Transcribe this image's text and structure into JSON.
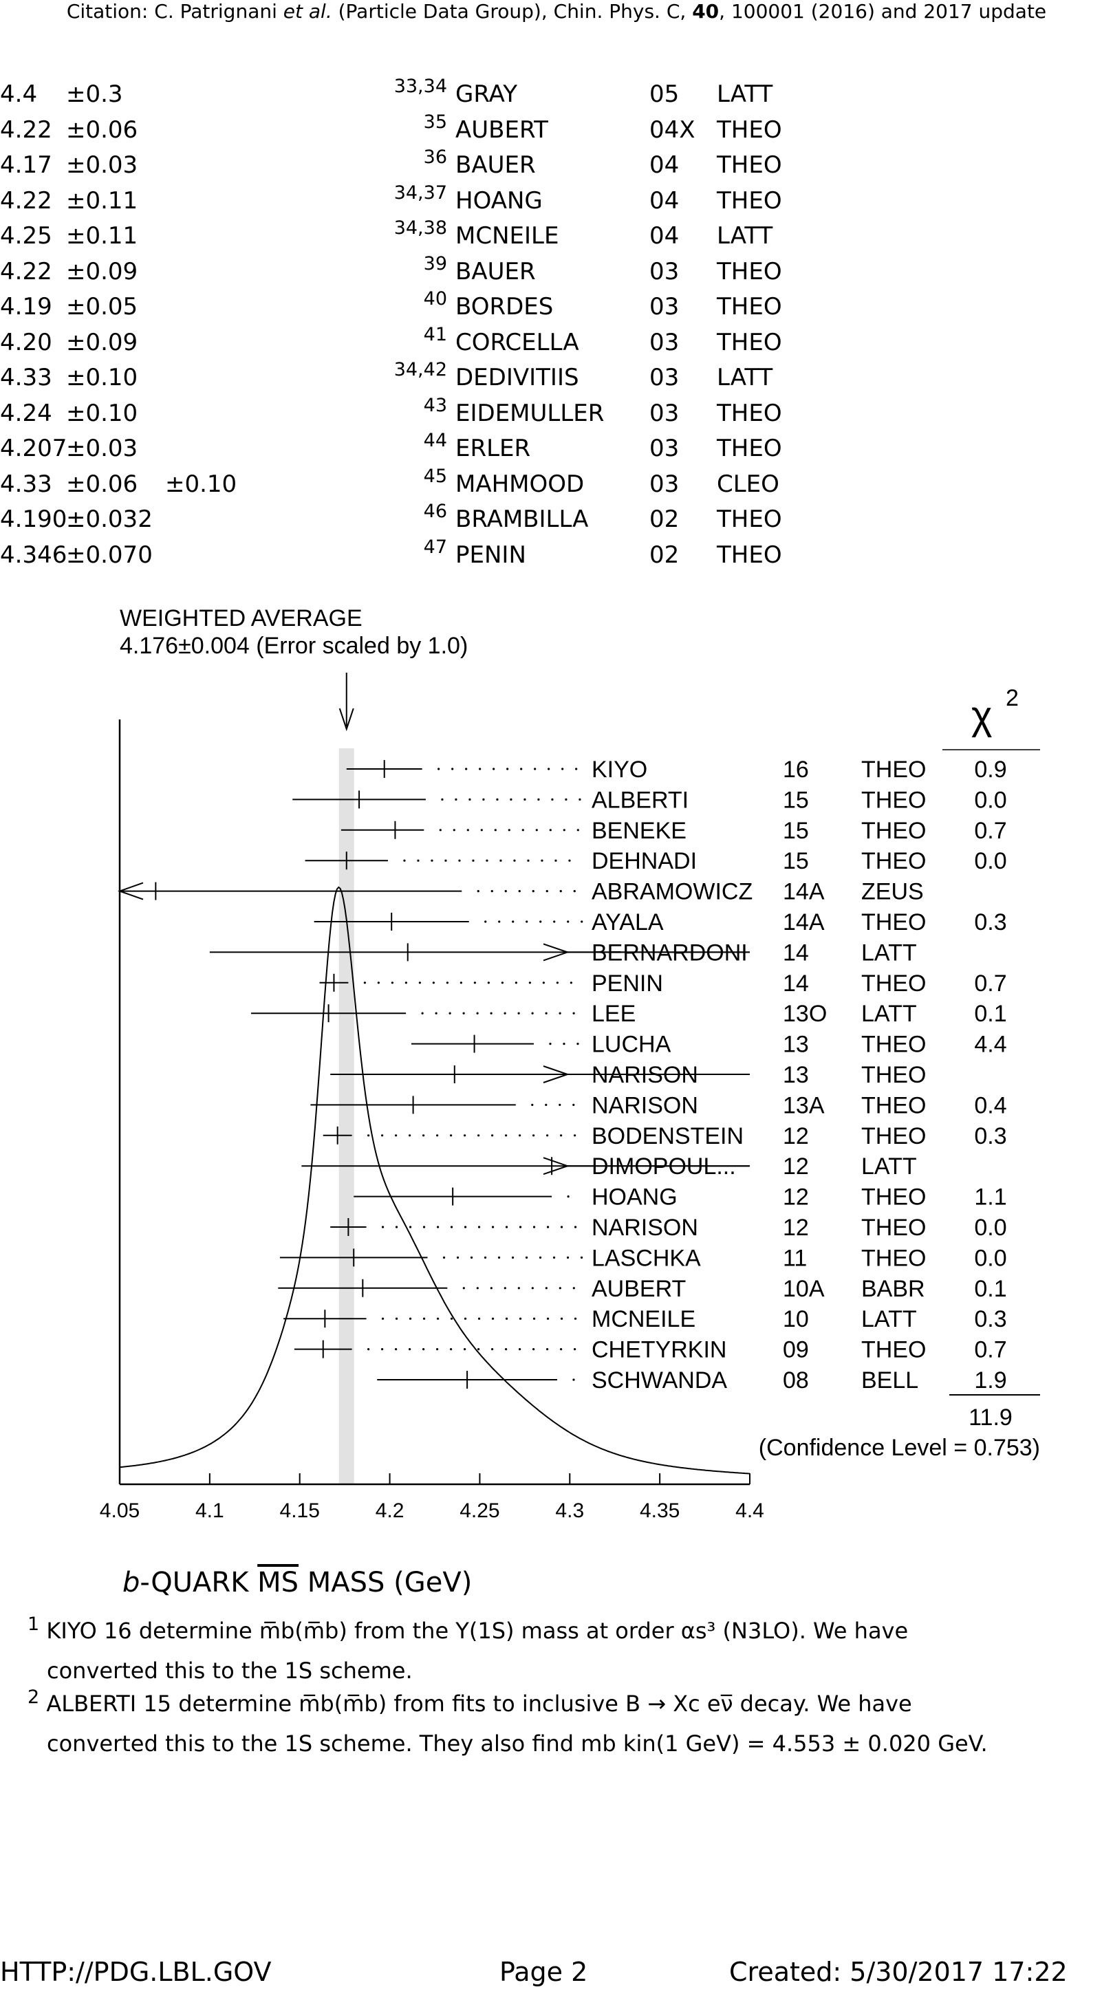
{
  "header": {
    "pre": "Citation: C. Patrignani ",
    "etal": "et al.",
    "post": " (Particle Data Group), Chin. Phys. C, ",
    "vol": "40",
    "tail": ", 100001 (2016) and 2017 update"
  },
  "measurements": [
    {
      "value": "4.4",
      "err1": "±0.3",
      "err2": "",
      "refs": "33,34",
      "author": "GRAY",
      "year": "05",
      "tecn": "LATT"
    },
    {
      "value": "4.22",
      "err1": "±0.06",
      "err2": "",
      "refs": "35",
      "author": "AUBERT",
      "year": "04X",
      "tecn": "THEO"
    },
    {
      "value": "4.17",
      "err1": "±0.03",
      "err2": "",
      "refs": "36",
      "author": "BAUER",
      "year": "04",
      "tecn": "THEO"
    },
    {
      "value": "4.22",
      "err1": "±0.11",
      "err2": "",
      "refs": "34,37",
      "author": "HOANG",
      "year": "04",
      "tecn": "THEO"
    },
    {
      "value": "4.25",
      "err1": "±0.11",
      "err2": "",
      "refs": "34,38",
      "author": "MCNEILE",
      "year": "04",
      "tecn": "LATT"
    },
    {
      "value": "4.22",
      "err1": "±0.09",
      "err2": "",
      "refs": "39",
      "author": "BAUER",
      "year": "03",
      "tecn": "THEO"
    },
    {
      "value": "4.19",
      "err1": "±0.05",
      "err2": "",
      "refs": "40",
      "author": "BORDES",
      "year": "03",
      "tecn": "THEO"
    },
    {
      "value": "4.20",
      "err1": "±0.09",
      "err2": "",
      "refs": "41",
      "author": "CORCELLA",
      "year": "03",
      "tecn": "THEO"
    },
    {
      "value": "4.33",
      "err1": "±0.10",
      "err2": "",
      "refs": "34,42",
      "author": "DEDIVITIIS",
      "year": "03",
      "tecn": "LATT"
    },
    {
      "value": "4.24",
      "err1": "±0.10",
      "err2": "",
      "refs": "43",
      "author": "EIDEMULLER",
      "year": "03",
      "tecn": "THEO"
    },
    {
      "value": "4.207",
      "err1": "±0.03",
      "err2": "",
      "refs": "44",
      "author": "ERLER",
      "year": "03",
      "tecn": "THEO"
    },
    {
      "value": "4.33",
      "err1": "±0.06",
      "err2": "±0.10",
      "refs": "45",
      "author": "MAHMOOD",
      "year": "03",
      "tecn": "CLEO"
    },
    {
      "value": "4.190",
      "err1": "±0.032",
      "err2": "",
      "refs": "46",
      "author": "BRAMBILLA",
      "year": "02",
      "tecn": "THEO"
    },
    {
      "value": "4.346",
      "err1": "±0.070",
      "err2": "",
      "refs": "47",
      "author": "PENIN",
      "year": "02",
      "tecn": "THEO"
    }
  ],
  "chart_data": {
    "type": "ideogram",
    "title_line1": "WEIGHTED AVERAGE",
    "title_line2": "4.176±0.004 (Error scaled by 1.0)",
    "average": 4.176,
    "average_error": 0.004,
    "chi2_header": "χ",
    "chi2_exp": "2",
    "xlim": [
      4.05,
      4.4
    ],
    "ticks": [
      "4.05",
      "4.1",
      "4.15",
      "4.2",
      "4.25",
      "4.3",
      "4.35",
      "4.4"
    ],
    "tick_values": [
      4.05,
      4.1,
      4.15,
      4.2,
      4.25,
      4.3,
      4.35,
      4.4
    ],
    "xlabel_b": "b",
    "xlabel_rest": "-QUARK ",
    "xlabel_ms": "MS",
    "xlabel_unit": " MASS (GeV)",
    "entries": [
      {
        "label": "KIYO",
        "year": "16",
        "tecn": "THEO",
        "chi2": "0.9",
        "center": 4.197,
        "lo": 4.176,
        "hi": 4.218,
        "arrow_lo": false,
        "arrow_hi": false
      },
      {
        "label": "ALBERTI",
        "year": "15",
        "tecn": "THEO",
        "chi2": "0.0",
        "center": 4.183,
        "lo": 4.146,
        "hi": 4.22,
        "arrow_lo": false,
        "arrow_hi": false
      },
      {
        "label": "BENEKE",
        "year": "15",
        "tecn": "THEO",
        "chi2": "0.7",
        "center": 4.203,
        "lo": 4.173,
        "hi": 4.219,
        "arrow_lo": false,
        "arrow_hi": false
      },
      {
        "label": "DEHNADI",
        "year": "15",
        "tecn": "THEO",
        "chi2": "0.0",
        "center": 4.176,
        "lo": 4.153,
        "hi": 4.199,
        "arrow_lo": false,
        "arrow_hi": false
      },
      {
        "label": "ABRAMOWICZ",
        "year": "14A",
        "tecn": "ZEUS",
        "chi2": "",
        "center": 4.07,
        "lo": 4.05,
        "hi": 4.24,
        "arrow_lo": true,
        "arrow_hi": false
      },
      {
        "label": "AYALA",
        "year": "14A",
        "tecn": "THEO",
        "chi2": "0.3",
        "center": 4.201,
        "lo": 4.158,
        "hi": 4.244,
        "arrow_lo": false,
        "arrow_hi": false
      },
      {
        "label": "BERNARDONI",
        "year": "14",
        "tecn": "LATT",
        "chi2": "",
        "center": 4.21,
        "lo": 4.1,
        "hi": 4.4,
        "arrow_lo": false,
        "arrow_hi": true
      },
      {
        "label": "PENIN",
        "year": "14",
        "tecn": "THEO",
        "chi2": "0.7",
        "center": 4.169,
        "lo": 4.161,
        "hi": 4.177,
        "arrow_lo": false,
        "arrow_hi": false
      },
      {
        "label": "LEE",
        "year": "13O",
        "tecn": "LATT",
        "chi2": "0.1",
        "center": 4.166,
        "lo": 4.123,
        "hi": 4.209,
        "arrow_lo": false,
        "arrow_hi": false
      },
      {
        "label": "LUCHA",
        "year": "13",
        "tecn": "THEO",
        "chi2": "4.4",
        "center": 4.247,
        "lo": 4.212,
        "hi": 4.28,
        "arrow_lo": false,
        "arrow_hi": false
      },
      {
        "label": "NARISON",
        "year": "13",
        "tecn": "THEO",
        "chi2": "",
        "center": 4.236,
        "lo": 4.167,
        "hi": 4.4,
        "arrow_lo": false,
        "arrow_hi": true
      },
      {
        "label": "NARISON",
        "year": "13A",
        "tecn": "THEO",
        "chi2": "0.4",
        "center": 4.213,
        "lo": 4.156,
        "hi": 4.27,
        "arrow_lo": false,
        "arrow_hi": false
      },
      {
        "label": "BODENSTEIN",
        "year": "12",
        "tecn": "THEO",
        "chi2": "0.3",
        "center": 4.171,
        "lo": 4.163,
        "hi": 4.179,
        "arrow_lo": false,
        "arrow_hi": false
      },
      {
        "label": "DIMOPOUL...",
        "year": "12",
        "tecn": "LATT",
        "chi2": "",
        "center": 4.29,
        "lo": 4.151,
        "hi": 4.4,
        "arrow_lo": false,
        "arrow_hi": true
      },
      {
        "label": "HOANG",
        "year": "12",
        "tecn": "THEO",
        "chi2": "1.1",
        "center": 4.235,
        "lo": 4.18,
        "hi": 4.29,
        "arrow_lo": false,
        "arrow_hi": false
      },
      {
        "label": "NARISON",
        "year": "12",
        "tecn": "THEO",
        "chi2": "0.0",
        "center": 4.177,
        "lo": 4.167,
        "hi": 4.187,
        "arrow_lo": false,
        "arrow_hi": false
      },
      {
        "label": "LASCHKA",
        "year": "11",
        "tecn": "THEO",
        "chi2": "0.0",
        "center": 4.18,
        "lo": 4.139,
        "hi": 4.221,
        "arrow_lo": false,
        "arrow_hi": false
      },
      {
        "label": "AUBERT",
        "year": "10A",
        "tecn": "BABR",
        "chi2": "0.1",
        "center": 4.185,
        "lo": 4.138,
        "hi": 4.232,
        "arrow_lo": false,
        "arrow_hi": false
      },
      {
        "label": "MCNEILE",
        "year": "10",
        "tecn": "LATT",
        "chi2": "0.3",
        "center": 4.164,
        "lo": 4.141,
        "hi": 4.187,
        "arrow_lo": false,
        "arrow_hi": false
      },
      {
        "label": "CHETYRKIN",
        "year": "09",
        "tecn": "THEO",
        "chi2": "0.7",
        "center": 4.163,
        "lo": 4.147,
        "hi": 4.179,
        "arrow_lo": false,
        "arrow_hi": false
      },
      {
        "label": "SCHWANDA",
        "year": "08",
        "tecn": "BELL",
        "chi2": "1.9",
        "center": 4.243,
        "lo": 4.193,
        "hi": 4.293,
        "arrow_lo": false,
        "arrow_hi": false
      }
    ],
    "chi2_total": "11.9",
    "confidence_level": "(Confidence Level = 0.753)"
  },
  "footnotes": [
    {
      "num": "1",
      "line1": "KIYO 16 determine m̅b(m̅b) from the Υ(1S) mass at order αs³ (N3LO). We have",
      "line2": "converted this to the 1S scheme."
    },
    {
      "num": "2",
      "line1": "ALBERTI 15 determine m̅b(m̅b) from fits to inclusive B → Xc eν̅ decay. We have",
      "line2": "converted this to the 1S scheme. They also find mb kin(1 GeV) = 4.553 ± 0.020 GeV."
    }
  ],
  "footer": {
    "url": "HTTP://PDG.LBL.GOV",
    "page": "Page 2",
    "created": "Created: 5/30/2017 17:22"
  }
}
